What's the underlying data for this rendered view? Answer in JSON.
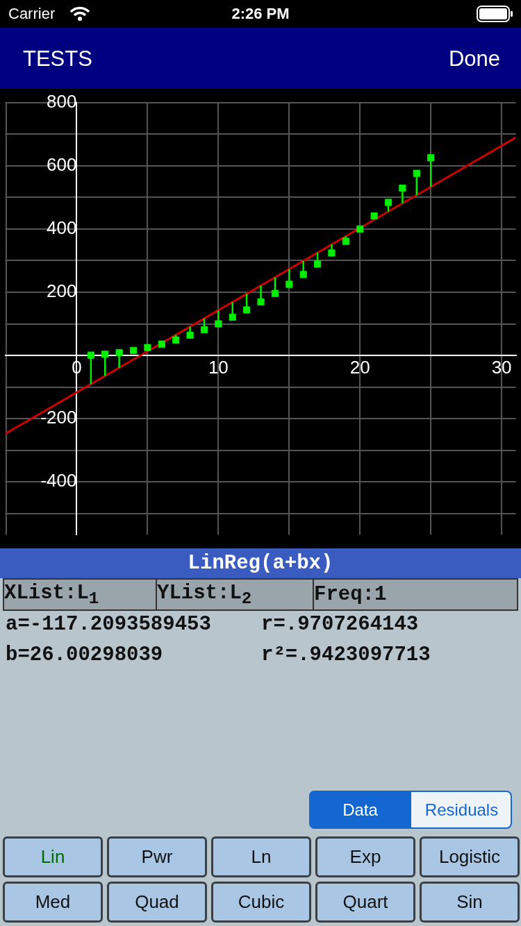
{
  "chart_data": {
    "type": "scatter",
    "x": [
      1,
      2,
      3,
      4,
      5,
      6,
      7,
      8,
      9,
      10,
      11,
      12,
      13,
      14,
      15,
      16,
      17,
      18,
      19,
      20,
      21,
      22,
      23,
      24,
      25
    ],
    "series": [
      {
        "type": "scatter",
        "color": "#00ee00",
        "marker": "square",
        "values": [
          1,
          4,
          9,
          16,
          25,
          36,
          49,
          64,
          81,
          100,
          121,
          144,
          169,
          196,
          225,
          256,
          289,
          324,
          361,
          400,
          441,
          484,
          529,
          576,
          625
        ],
        "errors": [
          [
            -91,
            1
          ],
          [
            -65,
            4
          ],
          [
            -39,
            9
          ],
          null,
          [
            13,
            25
          ],
          null,
          [
            49,
            65
          ],
          [
            64,
            91
          ],
          [
            81,
            117
          ],
          [
            100,
            143
          ],
          [
            121,
            169
          ],
          [
            144,
            195
          ],
          [
            169,
            221
          ],
          [
            196,
            247
          ],
          [
            225,
            273
          ],
          [
            256,
            299
          ],
          [
            289,
            325
          ],
          [
            324,
            351
          ],
          [
            361,
            377
          ],
          null,
          null,
          [
            455,
            484
          ],
          [
            481,
            529
          ],
          [
            507,
            576
          ],
          [
            533,
            625
          ]
        ]
      },
      {
        "type": "line",
        "color": "#cc0000",
        "marker": "none",
        "x": [
          -5.05,
          31
        ],
        "values": [
          -248,
          689
        ]
      }
    ],
    "xlim": [
      -5.05,
      31
    ],
    "ylim": [
      -567,
      800
    ],
    "xticks": [
      {
        "value": -5,
        "label": null
      },
      0,
      {
        "value": 5,
        "label": null
      },
      10,
      {
        "value": 15,
        "label": null
      },
      20,
      {
        "value": 25,
        "label": null
      },
      30
    ],
    "yticks": [
      {
        "value": -500,
        "label": null
      },
      -400,
      {
        "value": -300,
        "label": null
      },
      -200,
      {
        "value": -100,
        "label": null
      },
      {
        "value": 0,
        "label": null
      },
      {
        "value": 100,
        "label": null
      },
      200,
      {
        "value": 300,
        "label": null
      },
      400,
      {
        "value": 500,
        "label": null
      },
      600,
      {
        "value": 700,
        "label": null
      },
      800
    ],
    "grid": true,
    "legend": false,
    "annotations": [
      "Carrier",
      "2:26 PM",
      "TESTS",
      "Done",
      "LinReg(a+bx)",
      "XList:L$_{1}$",
      "YList:L$_{2}$",
      "Freq:1",
      "a=-117.2093589453",
      "r=.9707264143",
      "b=26.00298039",
      "r²=.9423097713",
      "Data",
      "Residuals",
      "Lin",
      "Pwr",
      "Ln",
      "Exp",
      "Logistic",
      "Med",
      "Quad",
      "Cubic",
      "Quart",
      "Sin"
    ]
  }
}
